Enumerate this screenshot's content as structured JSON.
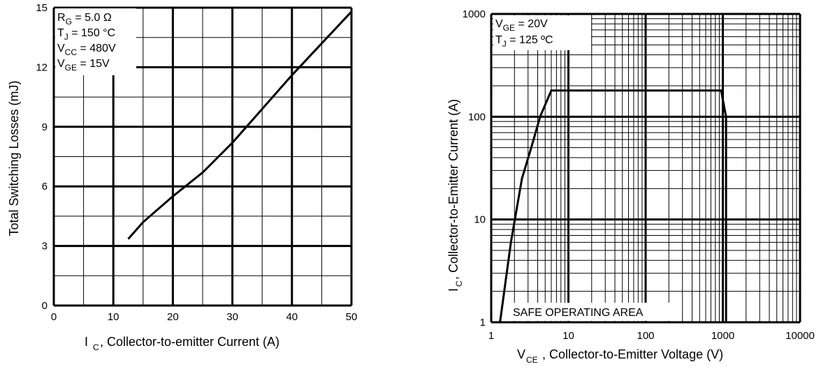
{
  "chart_data": [
    {
      "type": "line",
      "xlabel_prefix": "I",
      "xlabel_sub": "C",
      "xlabel_rest": ", Collector-to-emitter Current (A)",
      "ylabel": "Total Switching Losses (mJ)",
      "xlim": [
        0,
        50
      ],
      "ylim": [
        0,
        15
      ],
      "x_ticks": [
        0,
        10,
        20,
        30,
        40,
        50
      ],
      "y_ticks": [
        0,
        3,
        6,
        9,
        12,
        15
      ],
      "grid": true,
      "annotations": [
        {
          "main": "R",
          "sub": "G",
          "rest": " = 5.0 Ω"
        },
        {
          "main": "T",
          "sub": "J",
          "rest": " = 150 °C"
        },
        {
          "main": "V",
          "sub": "CC",
          "rest": " = 480V"
        },
        {
          "main": "V",
          "sub": "GE",
          "rest": " = 15V"
        }
      ],
      "series": [
        {
          "x": [
            12.5,
            15,
            20,
            25,
            30,
            35,
            40,
            45,
            50
          ],
          "y": [
            3.35,
            4.2,
            5.5,
            6.7,
            8.2,
            9.9,
            11.6,
            13.2,
            14.8
          ]
        }
      ]
    },
    {
      "type": "line",
      "xscale": "log",
      "yscale": "log",
      "xlabel_prefix": "V",
      "xlabel_sub": "CE",
      "xlabel_rest": ", Collector-to-Emitter Voltage (V)",
      "ylabel_prefix": "I",
      "ylabel_sub": "C",
      "ylabel_rest": ",  Collector-to-Emitter Current (A)",
      "xlim": [
        1,
        10000
      ],
      "ylim": [
        1,
        1000
      ],
      "x_ticks": [
        "1",
        "10",
        "100",
        "1000",
        "10000"
      ],
      "y_ticks": [
        "1",
        "10",
        "100",
        "1000"
      ],
      "grid": true,
      "annotations": [
        {
          "main": "V",
          "sub": "GE",
          "rest": " = 20V"
        },
        {
          "main": "T",
          "sub": "J",
          "rest": " = 125 ºC"
        }
      ],
      "region_label": "SAFE OPERATING AREA",
      "series": [
        {
          "x": [
            1.3,
            1.8,
            2.5,
            3.3,
            4.3,
            6,
            950,
            1100,
            1100
          ],
          "y": [
            1,
            6,
            25,
            50,
            100,
            180,
            180,
            100,
            1
          ]
        }
      ]
    }
  ]
}
